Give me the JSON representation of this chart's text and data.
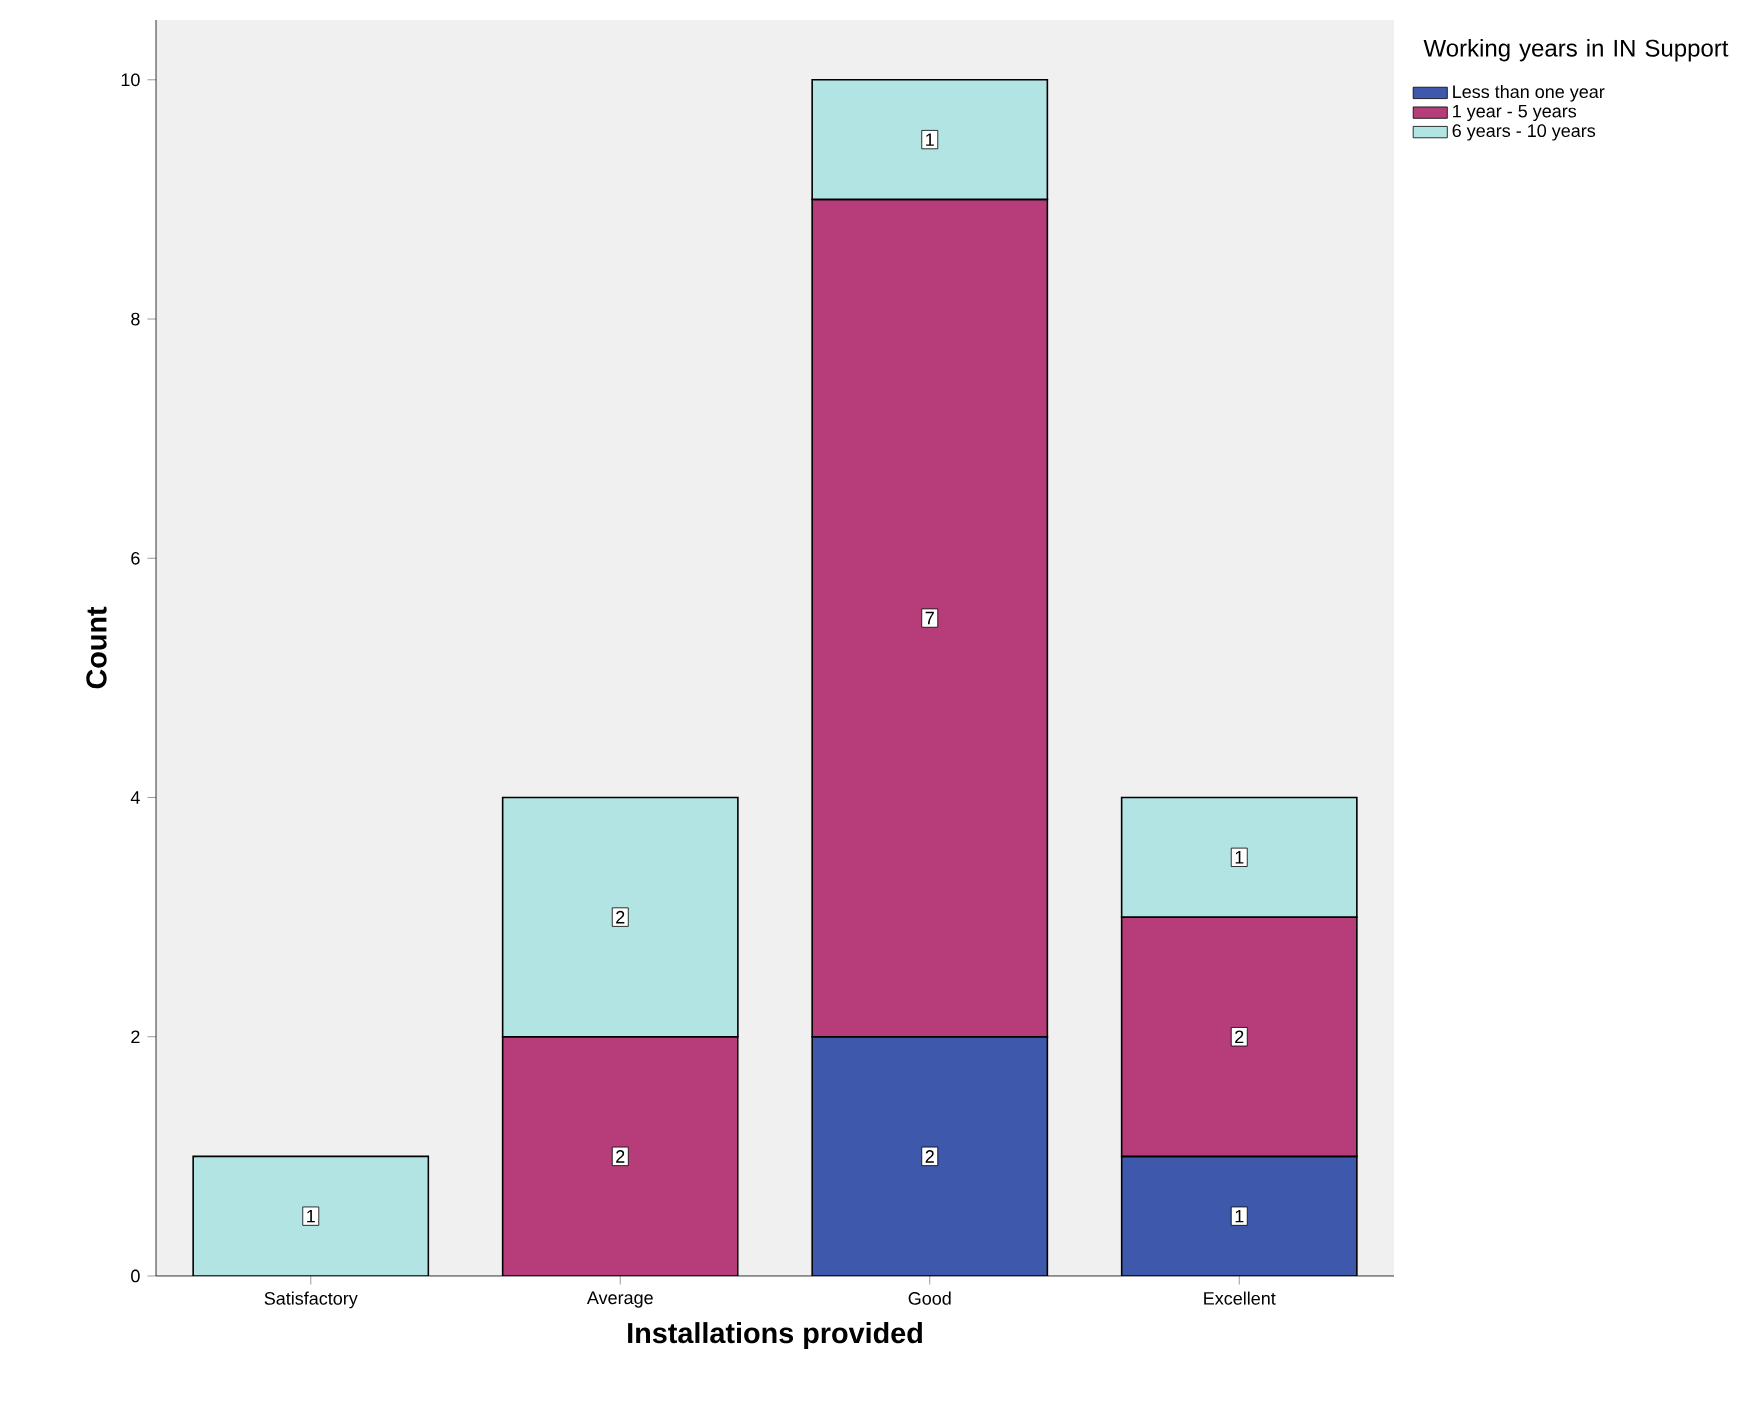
{
  "chart_data": {
    "type": "bar",
    "stacked": true,
    "xlabel": "Installations provided",
    "ylabel": "Count",
    "legend_title": "Working years in IN Support",
    "categories": [
      "Satisfactory",
      "Average",
      "Good",
      "Excellent"
    ],
    "series": [
      {
        "name": "Less than one year",
        "color": "#3e58ac",
        "values": [
          null,
          null,
          2,
          1
        ]
      },
      {
        "name": "1 year - 5 years",
        "color": "#b73c7a",
        "values": [
          null,
          2,
          7,
          2
        ]
      },
      {
        "name": "6 years - 10 years",
        "color": "#b3e4e4",
        "values": [
          1,
          2,
          1,
          1
        ]
      }
    ],
    "ylim": [
      0,
      10.5
    ],
    "yticks": [
      0,
      2,
      4,
      6,
      8,
      10
    ],
    "grid": false,
    "legend": "top right",
    "data_labels": true
  }
}
